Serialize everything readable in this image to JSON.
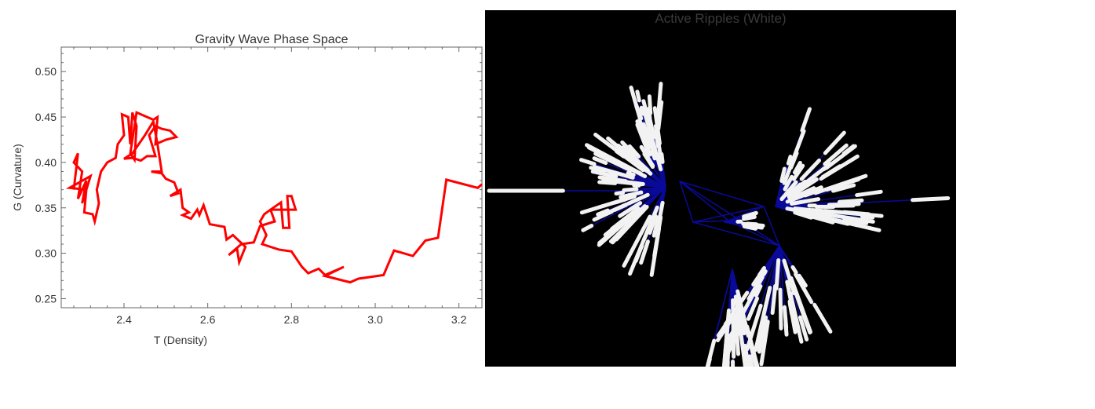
{
  "chart_data": {
    "type": "line",
    "title": "Gravity Wave Phase Space",
    "xlabel": "T (Density)",
    "ylabel": "G (Curvature)",
    "xlim": [
      2.25,
      3.255
    ],
    "ylim": [
      0.24,
      0.527
    ],
    "xticks": [
      2.4,
      2.6,
      2.8,
      3.0,
      3.2
    ],
    "yticks": [
      0.25,
      0.3,
      0.35,
      0.4,
      0.45,
      0.5
    ],
    "xtick_labels": [
      "2.4",
      "2.6",
      "2.8",
      "3.0",
      "3.2"
    ],
    "ytick_labels": [
      "0.25",
      "0.30",
      "0.35",
      "0.40",
      "0.45",
      "0.50"
    ],
    "grid": false,
    "line_color": "#ff0000",
    "series": [
      {
        "x": [
          2.28,
          2.29,
          2.28,
          2.3,
          2.29,
          2.31,
          2.3,
          2.32,
          2.27,
          2.31,
          2.305,
          2.325,
          2.33,
          2.34,
          2.335,
          2.345,
          2.36,
          2.38,
          2.385,
          2.4,
          2.395,
          2.41,
          2.415,
          2.42,
          2.43,
          2.425,
          2.415,
          2.43,
          2.445,
          2.47,
          2.48,
          2.475,
          2.5,
          2.525,
          2.51,
          2.49,
          2.475,
          2.46,
          2.475,
          2.455,
          2.44,
          2.42,
          2.4,
          2.42,
          2.45,
          2.47,
          2.48,
          2.49,
          2.465,
          2.49,
          2.5,
          2.52,
          2.53,
          2.51,
          2.535,
          2.54,
          2.555,
          2.54,
          2.56,
          2.575,
          2.58,
          2.59,
          2.605,
          2.64,
          2.645,
          2.66,
          2.69,
          2.675,
          2.67,
          2.65,
          2.68,
          2.71,
          2.725,
          2.76,
          2.75,
          2.775,
          2.78,
          2.795,
          2.79,
          2.8,
          2.81,
          2.75,
          2.735,
          2.725,
          2.74,
          2.73,
          2.77,
          2.8,
          2.825,
          2.84,
          2.865,
          2.88,
          2.925,
          2.88,
          2.94,
          2.96,
          3.02,
          3.045,
          3.09,
          3.12,
          3.15,
          3.17,
          3.245,
          3.255
        ],
        "y": [
          0.37,
          0.41,
          0.4,
          0.39,
          0.36,
          0.38,
          0.355,
          0.385,
          0.372,
          0.37,
          0.345,
          0.343,
          0.335,
          0.355,
          0.37,
          0.39,
          0.4,
          0.405,
          0.42,
          0.43,
          0.453,
          0.45,
          0.42,
          0.455,
          0.44,
          0.403,
          0.41,
          0.455,
          0.452,
          0.447,
          0.45,
          0.42,
          0.425,
          0.428,
          0.435,
          0.437,
          0.44,
          0.43,
          0.407,
          0.407,
          0.402,
          0.405,
          0.404,
          0.41,
          0.43,
          0.445,
          0.42,
          0.39,
          0.39,
          0.388,
          0.382,
          0.378,
          0.366,
          0.363,
          0.37,
          0.35,
          0.345,
          0.342,
          0.338,
          0.348,
          0.342,
          0.353,
          0.332,
          0.329,
          0.315,
          0.32,
          0.307,
          0.29,
          0.305,
          0.298,
          0.31,
          0.312,
          0.33,
          0.335,
          0.348,
          0.356,
          0.328,
          0.328,
          0.363,
          0.363,
          0.348,
          0.348,
          0.343,
          0.335,
          0.32,
          0.31,
          0.304,
          0.302,
          0.285,
          0.278,
          0.283,
          0.276,
          0.285,
          0.275,
          0.268,
          0.272,
          0.276,
          0.303,
          0.297,
          0.314,
          0.317,
          0.381,
          0.372,
          0.376
        ]
      }
    ]
  },
  "network": {
    "title": "Active Ripples (White)",
    "background": "#000000",
    "edge_color": "#0a0a9a",
    "ripple_color": "#f2f2f2"
  }
}
